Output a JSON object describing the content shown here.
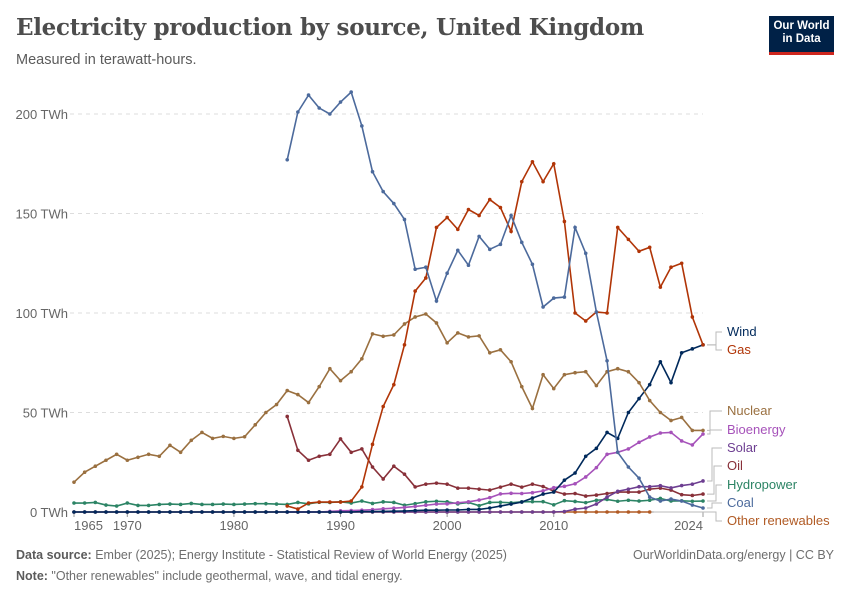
{
  "header": {
    "title": "Electricity production by source, United Kingdom",
    "subtitle": "Measured in terawatt-hours.",
    "logo_line1": "Our World",
    "logo_line2": "in Data"
  },
  "footer": {
    "source_label": "Data source:",
    "source_text": " Ember (2025); Energy Institute - Statistical Review of World Energy (2025)",
    "note_label": "Note:",
    "note_text": " \"Other renewables\" include geothermal, wave, and tidal energy.",
    "credit": "OurWorldinData.org/energy | CC BY"
  },
  "chart_data": {
    "type": "line",
    "title": "Electricity production by source, United Kingdom",
    "ylabel": "TWh",
    "xlim": [
      1965,
      2024
    ],
    "ylim": [
      0,
      215
    ],
    "grid": true,
    "yticks": [
      {
        "v": 0,
        "label": "0 TWh"
      },
      {
        "v": 50,
        "label": "50 TWh"
      },
      {
        "v": 100,
        "label": "100 TWh"
      },
      {
        "v": 150,
        "label": "150 TWh"
      },
      {
        "v": 200,
        "label": "200 TWh"
      }
    ],
    "xticks": [
      {
        "v": 1965,
        "label": "1965"
      },
      {
        "v": 1970,
        "label": "1970"
      },
      {
        "v": 1980,
        "label": "1980"
      },
      {
        "v": 1990,
        "label": "1990"
      },
      {
        "v": 2000,
        "label": "2000"
      },
      {
        "v": 2010,
        "label": "2010"
      },
      {
        "v": 2024,
        "label": "2024"
      }
    ],
    "legend_placement": "right (line-end labels)",
    "series": [
      {
        "name": "Coal",
        "color": "#4c6a9c",
        "start": 1985,
        "values": [
          177,
          201,
          209.5,
          203,
          200,
          206,
          211,
          194,
          171,
          161,
          155,
          147,
          122,
          123,
          106,
          120,
          131.5,
          124,
          138.5,
          132,
          134.5,
          149,
          135.5,
          124.5,
          103,
          107.5,
          108,
          143,
          130,
          100.5,
          76,
          30,
          22.6,
          17,
          7.5,
          5.5,
          6.5,
          5.5,
          3.5,
          2
        ]
      },
      {
        "name": "Gas",
        "color": "#b13507",
        "start": 1985,
        "values": [
          3,
          1.5,
          4.5,
          5,
          5,
          5,
          5.5,
          12.6,
          34,
          53,
          64,
          84,
          111,
          117.6,
          143,
          148,
          142,
          152,
          149,
          157,
          153,
          141,
          166,
          176,
          166,
          175,
          146,
          100,
          96,
          100.5,
          100,
          143,
          137,
          131,
          133,
          113,
          123,
          125,
          98,
          84
        ]
      },
      {
        "name": "Nuclear",
        "color": "#9a7040",
        "start": 1965,
        "values": [
          15,
          20,
          23,
          26,
          29,
          26,
          27.5,
          29,
          28,
          33.5,
          30,
          36,
          40,
          37,
          38,
          37,
          37.8,
          43.8,
          50,
          54,
          61,
          59,
          55,
          63,
          72,
          66,
          70.5,
          77,
          89.5,
          88.3,
          89,
          94.5,
          98,
          99.5,
          95,
          85,
          90,
          88,
          88.5,
          80,
          81.5,
          75.5,
          63,
          52,
          69,
          62,
          69,
          70,
          70.5,
          63.5,
          70.5,
          72,
          70.5,
          65,
          56,
          50,
          46,
          47.5,
          41,
          41
        ]
      },
      {
        "name": "Wind",
        "color": "#00295b",
        "start": 1965,
        "values": [
          0,
          0,
          0,
          0,
          0,
          0,
          0,
          0,
          0,
          0,
          0,
          0,
          0,
          0,
          0,
          0,
          0,
          0,
          0,
          0,
          0,
          0,
          0,
          0,
          0,
          0,
          0,
          0.2,
          0.2,
          0.3,
          0.4,
          0.5,
          0.7,
          0.9,
          0.9,
          1,
          1,
          1.3,
          1.3,
          2,
          3,
          4,
          5,
          7,
          9,
          10,
          16,
          19.6,
          28,
          32,
          40,
          37,
          50,
          57,
          64,
          75.5,
          65,
          80,
          82,
          84
        ]
      },
      {
        "name": "Bioenergy",
        "color": "#a652ba",
        "start": 1985,
        "values": [
          0,
          0,
          0,
          0,
          0.3,
          0.6,
          0.7,
          0.9,
          1.2,
          1.6,
          1.9,
          2.3,
          2.8,
          3.4,
          4,
          4.1,
          4.6,
          5.1,
          6,
          7.2,
          9.1,
          9.4,
          9.3,
          9.7,
          10.6,
          12.2,
          12.9,
          14.2,
          17.6,
          22.3,
          29,
          30,
          31.7,
          35,
          37.7,
          39.7,
          40,
          35.7,
          33.7,
          39.2
        ]
      },
      {
        "name": "Solar",
        "color": "#6d3e91",
        "start": 1965,
        "values": [
          0,
          0,
          0,
          0,
          0,
          0,
          0,
          0,
          0,
          0,
          0,
          0,
          0,
          0,
          0,
          0,
          0,
          0,
          0,
          0,
          0,
          0,
          0,
          0,
          0,
          0,
          0,
          0,
          0,
          0,
          0,
          0,
          0,
          0,
          0,
          0,
          0,
          0,
          0,
          0,
          0,
          0,
          0,
          0,
          0,
          0,
          0.25,
          1.4,
          2,
          4,
          7.5,
          10.4,
          11.5,
          12.7,
          12.7,
          13.2,
          12.1,
          13.3,
          14,
          15.6
        ]
      },
      {
        "name": "Oil",
        "color": "#883039",
        "start": 1985,
        "values": [
          48,
          31,
          26,
          28,
          29,
          36.7,
          30,
          31.7,
          22.6,
          16.6,
          23,
          19,
          12.6,
          14,
          14.5,
          14,
          12,
          12,
          11.5,
          11,
          12.5,
          14,
          12.5,
          14,
          12.8,
          10.5,
          9,
          9.3,
          8,
          8.5,
          9.3,
          10,
          10,
          10,
          11.5,
          12,
          11,
          8.7,
          8.3,
          9
        ]
      },
      {
        "name": "Hydropower",
        "color": "#2c8465",
        "start": 1965,
        "values": [
          4.5,
          4.5,
          4.8,
          3.5,
          3,
          4.5,
          3.3,
          3.3,
          3.8,
          4,
          3.8,
          4.3,
          3.8,
          3.8,
          4,
          3.8,
          4,
          4.2,
          4.2,
          4,
          3.8,
          4.8,
          4.1,
          4.9,
          4.8,
          5.1,
          4.5,
          5.5,
          4.3,
          5.1,
          4.8,
          3.4,
          4.2,
          5.1,
          5.4,
          5.1,
          4.1,
          4.8,
          3.2,
          4.8,
          4.9,
          4.6,
          5.1,
          5.2,
          5.2,
          3.6,
          5.7,
          5.3,
          4.7,
          5.9,
          6.3,
          5.4,
          5.9,
          5.5,
          5.9,
          6.8,
          5.5,
          5.6,
          5.4,
          5.5
        ]
      },
      {
        "name": "Other renewables",
        "color": "#b15b25",
        "start": 1965,
        "values": [
          0,
          0,
          0,
          0,
          0,
          0,
          0,
          0,
          0,
          0,
          0,
          0,
          0,
          0,
          0,
          0,
          0,
          0,
          0,
          0,
          0,
          0,
          0,
          0,
          0,
          0,
          0,
          0,
          0,
          0,
          0,
          0,
          0,
          0,
          0,
          0,
          0,
          0,
          0,
          0,
          0,
          0,
          0,
          0,
          0,
          0,
          0,
          0,
          0,
          0,
          0,
          0,
          0,
          0,
          0
        ]
      }
    ],
    "legend_order": [
      "Wind",
      "Gas",
      "Nuclear",
      "Bioenergy",
      "Solar",
      "Oil",
      "Hydropower",
      "Coal",
      "Other renewables"
    ]
  }
}
